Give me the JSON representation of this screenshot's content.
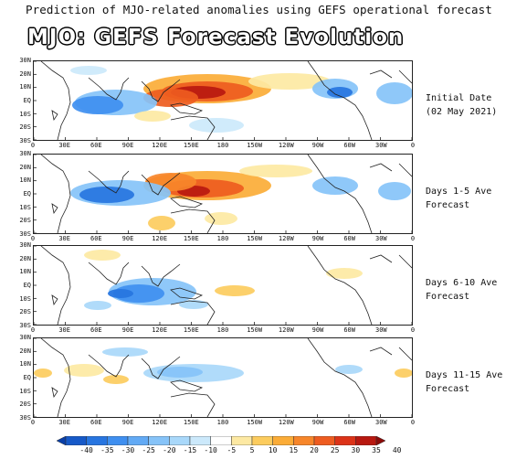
{
  "header": {
    "subtitle": "Prediction of MJO-related anomalies using GEFS operational forecast",
    "title": "MJO: GEFS Forecast Evolution"
  },
  "axes": {
    "lat_labels": [
      "30N",
      "20N",
      "10N",
      "EQ",
      "10S",
      "20S",
      "30S"
    ],
    "lon_labels": [
      "0",
      "30E",
      "60E",
      "90E",
      "120E",
      "150E",
      "180",
      "150W",
      "120W",
      "90W",
      "60W",
      "30W",
      "0"
    ]
  },
  "panels": [
    {
      "line1": "Initial Date",
      "line2": "(02 May 2021)"
    },
    {
      "line1": "Days 1-5 Ave",
      "line2": "Forecast"
    },
    {
      "line1": "Days 6-10 Ave",
      "line2": "Forecast"
    },
    {
      "line1": "Days 11-15 Ave",
      "line2": "Forecast"
    }
  ],
  "colorbar": {
    "labels": [
      "-40",
      "-35",
      "-30",
      "-25",
      "-20",
      "-15",
      "-10",
      "-5",
      "5",
      "10",
      "15",
      "20",
      "25",
      "30",
      "35",
      "40"
    ],
    "colors": [
      "#0a3fa8",
      "#1659c8",
      "#2775e0",
      "#3f8ff0",
      "#62aaf5",
      "#86c3f8",
      "#a9d8fa",
      "#cce9fb",
      "#ffffff",
      "#fde9a3",
      "#fccc5e",
      "#fbac37",
      "#f7862a",
      "#ee5c20",
      "#dc3318",
      "#b81810",
      "#8c0a08"
    ]
  }
}
